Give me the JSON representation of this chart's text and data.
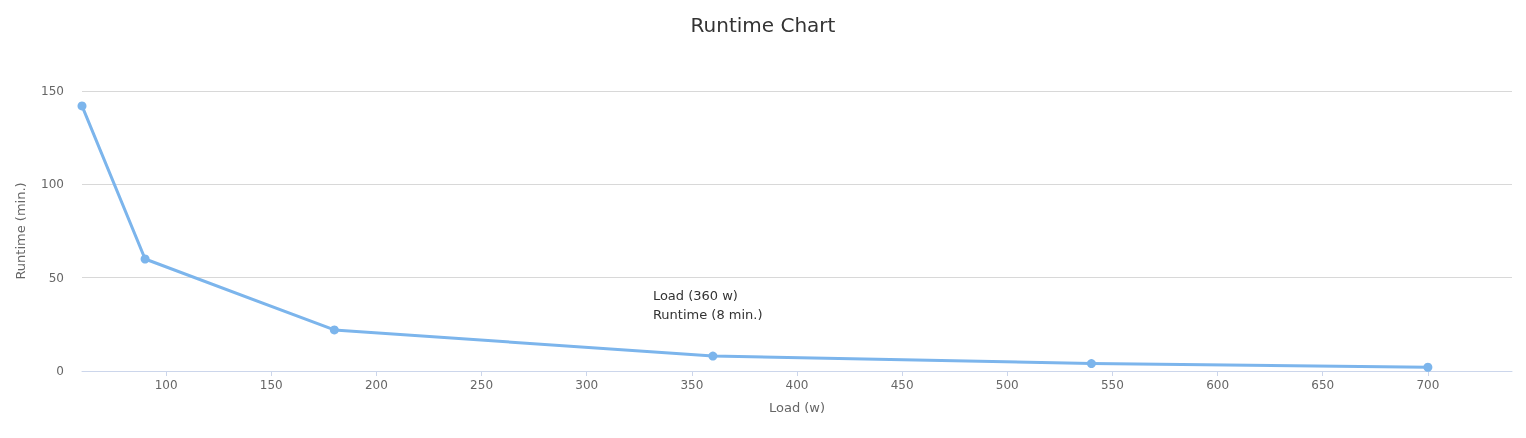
{
  "chart_data": {
    "type": "line",
    "title": "Runtime Chart",
    "xlabel": "Load (w)",
    "ylabel": "Runtime (min.)",
    "x": [
      60,
      90,
      180,
      360,
      540,
      700
    ],
    "series": [
      {
        "color": "#7cb5ec",
        "values": [
          142,
          60,
          22,
          8,
          4,
          2
        ]
      }
    ],
    "xlim": [
      60,
      740
    ],
    "xticks": [
      100,
      150,
      200,
      250,
      300,
      350,
      400,
      450,
      500,
      550,
      600,
      650,
      700
    ],
    "ylim": [
      0,
      150
    ],
    "yticks": [
      0,
      50,
      100,
      150
    ],
    "grid": "y",
    "marker": "circle",
    "line_style": "solid",
    "annotations": [
      {
        "text": "Load (360 w)\nRuntime (8 min.)",
        "x": 360,
        "y": 8
      }
    ]
  }
}
